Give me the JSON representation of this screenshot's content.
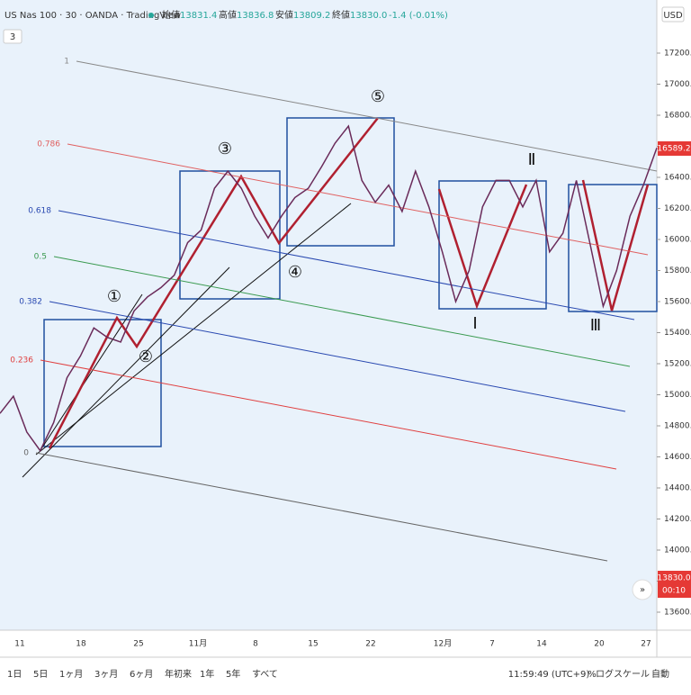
{
  "header": {
    "symbol": "US Nas 100 · 30 · OANDA · TradingView",
    "open_label": "始値",
    "open": "13831.4",
    "high_label": "高値",
    "high": "13836.8",
    "low_label": "安値",
    "low": "13809.2",
    "close_label": "終値",
    "close": "13830.0",
    "change": "-1.4 (-0.01%)",
    "indicator_count": "3",
    "currency": "USD"
  },
  "chart_data": {
    "type": "line",
    "name": "price",
    "color": "#6a2b5a",
    "values": [
      14880,
      14990,
      14760,
      14640,
      14820,
      15110,
      15250,
      15430,
      15370,
      15340,
      15540,
      15630,
      15690,
      15770,
      15980,
      16060,
      16330,
      16440,
      16330,
      16150,
      16010,
      16150,
      16270,
      16330,
      16470,
      16620,
      16730,
      16380,
      16240,
      16350,
      16180,
      16440,
      16210,
      15920,
      15600,
      15800,
      16210,
      16380,
      16380,
      16210,
      16380,
      15920,
      16040,
      16380,
      15980,
      15570,
      15800,
      16150,
      16350,
      16590
    ],
    "ylim": [
      13600,
      17200
    ],
    "yticks": [
      {
        "value": 17200,
        "label": "17200.0"
      },
      {
        "value": 17000,
        "label": "17000.0"
      },
      {
        "value": 16800,
        "label": "16800.0"
      },
      {
        "value": 16600,
        "label": "16600.0"
      },
      {
        "value": 16400,
        "label": "16400.0"
      },
      {
        "value": 16200,
        "label": "16200.0"
      },
      {
        "value": 16000,
        "label": "16000.0"
      },
      {
        "value": 15800,
        "label": "15800.0"
      },
      {
        "value": 15600,
        "label": "15600.0"
      },
      {
        "value": 15400,
        "label": "15400.0"
      },
      {
        "value": 15200,
        "label": "15200.0"
      },
      {
        "value": 15000,
        "label": "15000.0"
      },
      {
        "value": 14800,
        "label": "14800.0"
      },
      {
        "value": 14600,
        "label": "14600.0"
      },
      {
        "value": 14400,
        "label": "14400.0"
      },
      {
        "value": 14200,
        "label": "14200.0"
      },
      {
        "value": 14000,
        "label": "14000.0"
      },
      {
        "value": 13800,
        "label": "13800.0"
      },
      {
        "value": 13600,
        "label": "13600.0"
      }
    ],
    "xticks": [
      "11",
      "18",
      "25",
      "11月",
      "8",
      "15",
      "22",
      "12月",
      "7",
      "14",
      "20",
      "27"
    ],
    "last_price": "16589.2",
    "current_price": "13830.0",
    "countdown": "00:10"
  },
  "fib_levels": [
    {
      "label": "1",
      "color": "#888888"
    },
    {
      "label": "0.786",
      "color": "#e06060"
    },
    {
      "label": "0.618",
      "color": "#2848b0"
    },
    {
      "label": "0.5",
      "color": "#3a9a50"
    },
    {
      "label": "0.382",
      "color": "#2848b0"
    },
    {
      "label": "0.236",
      "color": "#e04040"
    },
    {
      "label": "0",
      "color": "#666666"
    }
  ],
  "wave_labels": [
    "①",
    "②",
    "③",
    "④",
    "⑤",
    "Ⅰ",
    "Ⅱ",
    "Ⅲ"
  ],
  "footer": {
    "ranges": [
      "1日",
      "5日",
      "1ヶ月",
      "3ヶ月",
      "6ヶ月",
      "年初来",
      "1年",
      "5年",
      "すべて"
    ],
    "time": "11:59:49 (UTC+9)",
    "percent": "%",
    "log": "ログスケール",
    "auto": "自動"
  }
}
